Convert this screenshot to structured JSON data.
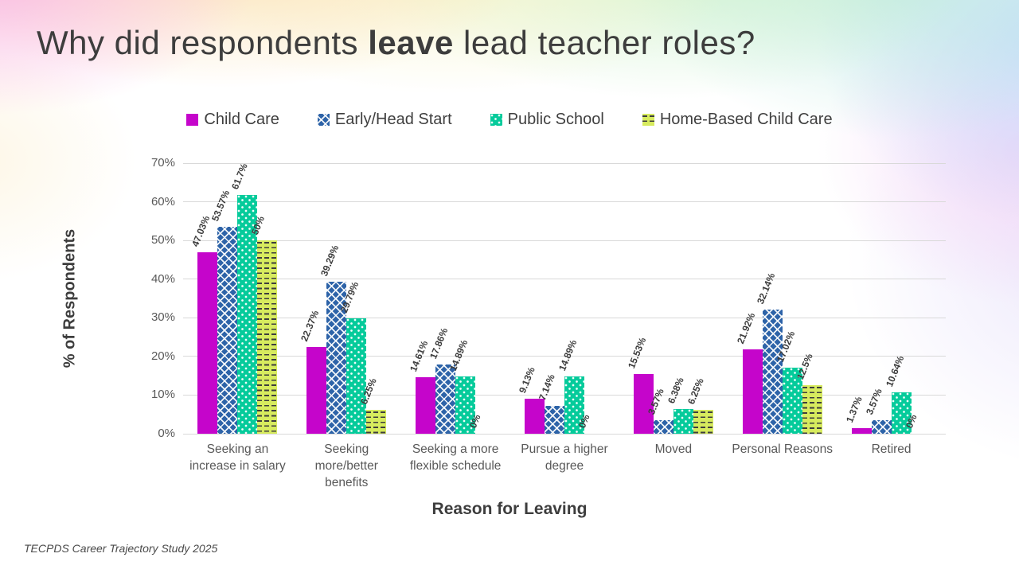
{
  "title": {
    "prefix": "Why did respondents ",
    "emphasis": "leave",
    "suffix": " lead teacher roles?"
  },
  "footer": {
    "source": "TECPDS Career Trajectory Study 2025"
  },
  "chart_data": {
    "type": "bar",
    "title": "Why did respondents leave lead teacher roles?",
    "xlabel": "Reason for Leaving",
    "ylabel": "% of Respondents",
    "ylim": [
      0,
      70
    ],
    "ytick_step": 10,
    "yticks": [
      "0%",
      "10%",
      "20%",
      "30%",
      "40%",
      "50%",
      "60%",
      "70%"
    ],
    "grid": true,
    "legend_position": "top",
    "data_label_rotation_deg": -68,
    "categories": [
      "Seeking an increase in salary",
      "Seeking more/better benefits",
      "Seeking a more flexible schedule",
      "Pursue a higher degree",
      "Moved",
      "Personal Reasons",
      "Retired"
    ],
    "series": [
      {
        "name": "Child Care",
        "color": "#C505CB",
        "pattern": "solid",
        "values": [
          47.03,
          22.37,
          14.61,
          9.13,
          15.53,
          21.92,
          1.37
        ],
        "labels": [
          "47.03%",
          "22.37%",
          "14.61%",
          "9.13%",
          "15.53%",
          "21.92%",
          "1.37%"
        ]
      },
      {
        "name": "Early/Head Start",
        "color": "#2D63A8",
        "pattern": "diamond",
        "values": [
          53.57,
          39.29,
          17.86,
          7.14,
          3.57,
          32.14,
          3.57
        ],
        "labels": [
          "53.57%",
          "39.29%",
          "17.86%",
          "7.14%",
          "3.57%",
          "32.14%",
          "3.57%"
        ]
      },
      {
        "name": "Public School",
        "color": "#05CB9B",
        "pattern": "dots",
        "values": [
          61.7,
          29.79,
          14.89,
          14.89,
          6.38,
          17.02,
          10.64
        ],
        "labels": [
          "61.7%",
          "29.79%",
          "14.89%",
          "14.89%",
          "6.38%",
          "17.02%",
          "10.64%"
        ]
      },
      {
        "name": "Home-Based Child Care",
        "color": "#D7EB5E",
        "pattern": "dash",
        "values": [
          50,
          6.25,
          0,
          0,
          6.25,
          12.5,
          0
        ],
        "labels": [
          "50%",
          "6.25%",
          "0%",
          "0%",
          "6.25%",
          "12.5%",
          "0%"
        ]
      }
    ]
  }
}
